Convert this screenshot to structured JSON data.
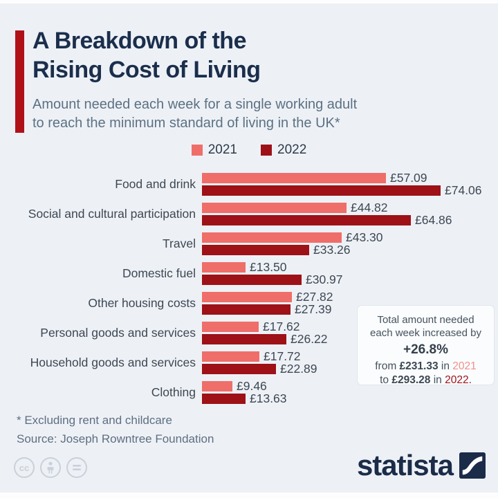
{
  "header": {
    "title_line1": "A Breakdown of the",
    "title_line2": "Rising Cost of Living",
    "subtitle_line1": "Amount needed each week for a single working adult",
    "subtitle_line2": "to reach the minimum standard of living in the UK*"
  },
  "chart_data": {
    "type": "bar",
    "orientation": "horizontal",
    "title": "A Breakdown of the Rising Cost of Living",
    "subtitle": "Amount needed each week for a single working adult to reach the minimum standard of living in the UK*",
    "categories": [
      "Food and drink",
      "Social and cultural participation",
      "Travel",
      "Domestic fuel",
      "Other housing costs",
      "Personal goods and services",
      "Household goods and services",
      "Clothing"
    ],
    "series": [
      {
        "name": "2021",
        "color": "#ef6e69",
        "values": [
          57.09,
          44.82,
          43.3,
          13.5,
          27.82,
          17.62,
          17.72,
          9.46
        ]
      },
      {
        "name": "2022",
        "color": "#9d1117",
        "values": [
          74.06,
          64.86,
          33.26,
          30.97,
          27.39,
          26.22,
          22.89,
          13.63
        ]
      }
    ],
    "value_labels": [
      [
        "£57.09",
        "£74.06"
      ],
      [
        "£44.82",
        "£64.86"
      ],
      [
        "£43.30",
        "£33.26"
      ],
      [
        "£13.50",
        "£30.97"
      ],
      [
        "£27.82",
        "£27.39"
      ],
      [
        "£17.62",
        "£26.22"
      ],
      [
        "£17.72",
        "£22.89"
      ],
      [
        "£9.46",
        "£13.63"
      ]
    ],
    "xmax": 74.06,
    "grid": false,
    "legend_position": "top-center"
  },
  "callout": {
    "line1": "Total amount needed",
    "line2": "each week increased by",
    "highlight": "+26.8%",
    "from_pre": "from",
    "from_value": "£231.33",
    "from_mid": "in",
    "from_year": "2021",
    "to_pre": "to",
    "to_value": "£293.28",
    "to_mid": "in",
    "to_year": "2022."
  },
  "footer": {
    "footnote": "* Excluding rent and childcare",
    "source": "Source: Joseph Rowntree Foundation",
    "brand": "statista",
    "cc_icons": [
      "cc",
      "attribution-person",
      "equals"
    ]
  },
  "colors": {
    "background": "#edf1f6",
    "accent_bar": "#b01119",
    "title": "#1b2e4c",
    "subtitle": "#5c7082",
    "series_2021": "#ef6e69",
    "series_2022": "#9d1117",
    "label_text": "#3d4752",
    "callout_bg": "#fafcfd",
    "brand_navy": "#1b2c49"
  }
}
